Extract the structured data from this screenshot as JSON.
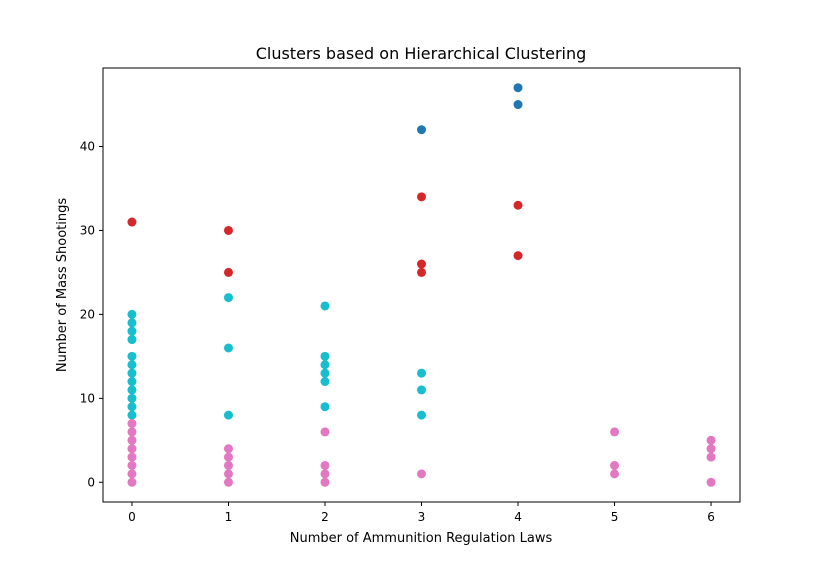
{
  "chart_data": {
    "type": "scatter",
    "title": "Clusters based on Hierarchical Clustering",
    "xlabel": "Number of Ammunition Regulation Laws",
    "ylabel": "Number of Mass Shootings",
    "xlim": [
      -0.3,
      6.3
    ],
    "ylim": [
      -2.35,
      49.35
    ],
    "xticks": [
      0,
      1,
      2,
      3,
      4,
      5,
      6
    ],
    "yticks": [
      0,
      10,
      20,
      30,
      40
    ],
    "grid": false,
    "legend": "none",
    "series": [
      {
        "color": "#1f77b4",
        "points": [
          [
            3,
            42
          ],
          [
            4,
            47
          ],
          [
            4,
            45
          ]
        ]
      },
      {
        "color": "#d62728",
        "points": [
          [
            0,
            31
          ],
          [
            1,
            30
          ],
          [
            1,
            25
          ],
          [
            3,
            34
          ],
          [
            3,
            26
          ],
          [
            3,
            25
          ],
          [
            4,
            33
          ],
          [
            4,
            27
          ]
        ]
      },
      {
        "color": "#17becf",
        "points": [
          [
            0,
            20
          ],
          [
            0,
            19
          ],
          [
            0,
            18
          ],
          [
            0,
            17
          ],
          [
            0,
            15
          ],
          [
            0,
            14
          ],
          [
            0,
            13
          ],
          [
            0,
            12
          ],
          [
            0,
            11
          ],
          [
            0,
            10
          ],
          [
            0,
            9
          ],
          [
            0,
            8
          ],
          [
            1,
            22
          ],
          [
            1,
            16
          ],
          [
            1,
            8
          ],
          [
            2,
            21
          ],
          [
            2,
            15
          ],
          [
            2,
            14
          ],
          [
            2,
            13
          ],
          [
            2,
            12
          ],
          [
            2,
            9
          ],
          [
            3,
            13
          ],
          [
            3,
            11
          ],
          [
            3,
            8
          ]
        ]
      },
      {
        "color": "#e377c2",
        "points": [
          [
            0,
            7
          ],
          [
            0,
            6
          ],
          [
            0,
            5
          ],
          [
            0,
            4
          ],
          [
            0,
            3
          ],
          [
            0,
            2
          ],
          [
            0,
            1
          ],
          [
            0,
            0
          ],
          [
            1,
            4
          ],
          [
            1,
            3
          ],
          [
            1,
            2
          ],
          [
            1,
            1
          ],
          [
            1,
            0
          ],
          [
            2,
            6
          ],
          [
            2,
            2
          ],
          [
            2,
            1
          ],
          [
            2,
            0
          ],
          [
            3,
            1
          ],
          [
            5,
            6
          ],
          [
            5,
            2
          ],
          [
            5,
            1
          ],
          [
            6,
            5
          ],
          [
            6,
            4
          ],
          [
            6,
            3
          ],
          [
            6,
            0
          ]
        ]
      }
    ]
  }
}
